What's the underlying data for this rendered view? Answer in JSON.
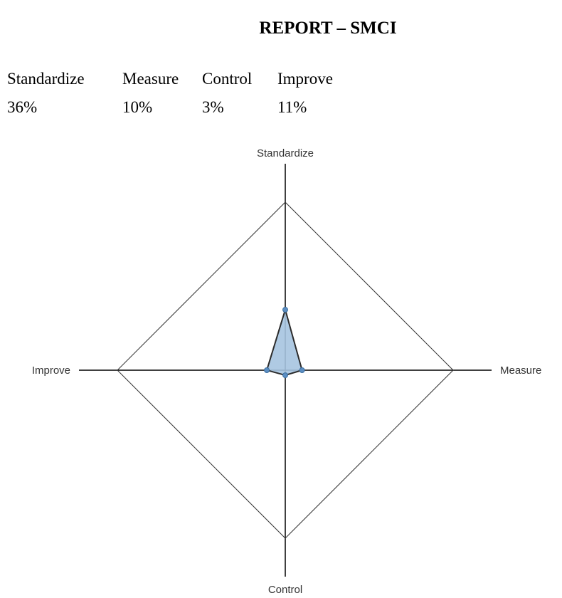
{
  "report": {
    "title": "REPORT – SMCI"
  },
  "summary": [
    {
      "label": "Standardize",
      "value": "36%"
    },
    {
      "label": "Measure",
      "value": "10%"
    },
    {
      "label": "Control",
      "value": "3%"
    },
    {
      "label": "Improve",
      "value": "11%"
    }
  ],
  "chart_data": {
    "type": "radar",
    "title": "",
    "axes": [
      "Standardize",
      "Measure",
      "Control",
      "Improve"
    ],
    "series": [
      {
        "values": [
          36,
          10,
          3,
          11
        ]
      }
    ],
    "range": [
      0,
      100
    ],
    "fill_color": "#a6c4e0",
    "stroke_color": "#2b2b2b",
    "point_color": "#5b8ec2"
  }
}
